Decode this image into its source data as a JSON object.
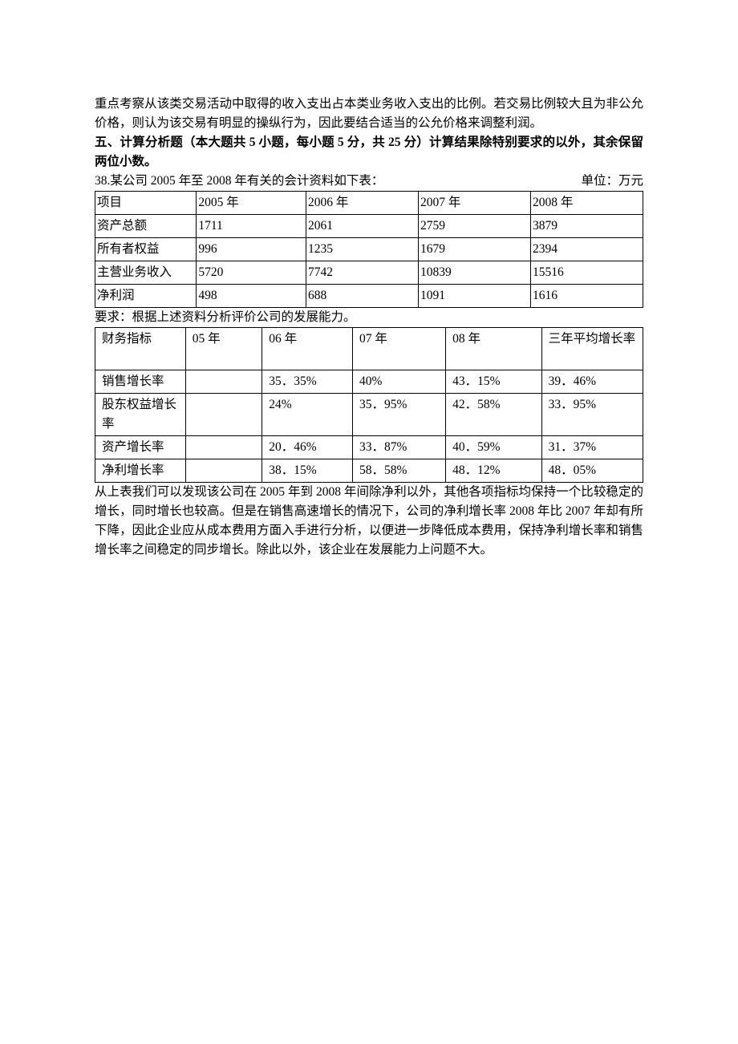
{
  "intro": {
    "p1": "重点考察从该类交易活动中取得的收入支出占本类业务收入支出的比例。若交易比例较大且为非公允价格，则认为该交易有明显的操纵行为，因此要结合适当的公允价格来调整利润。",
    "p2": "五、计算分析题（本大题共 5 小题，每小题 5 分，共 25 分）计算结果除特别要求的以外，其余保留两位小数。",
    "p3_left": "38.某公司 2005 年至 2008 年有关的会计资料如下表：",
    "p3_right": "单位：万元"
  },
  "table1": {
    "col_widths": [
      "18.5%",
      "20%",
      "20.5%",
      "20.5%",
      "20.5%"
    ],
    "rows": [
      [
        "项目",
        "2005 年",
        "2006 年",
        "2007 年",
        "2008 年"
      ],
      [
        "资产总额",
        "1711",
        "2061",
        "2759",
        "3879"
      ],
      [
        "所有者权益",
        "996",
        "1235",
        "1679",
        "2394"
      ],
      [
        "主营业务收入",
        "5720",
        "7742",
        "10839",
        "15516"
      ],
      [
        "净利润",
        "498",
        "688",
        "1091",
        "1616"
      ]
    ]
  },
  "mid": {
    "p1": "要求：根据上述资料分析评价公司的发展能力。"
  },
  "table2": {
    "col_widths": [
      "16.5%",
      "14%",
      "16.5%",
      "17%",
      "17.5%",
      "18.5%"
    ],
    "rows": [
      {
        "tall": true,
        "cells": [
          "财务指标",
          "05 年",
          "06 年",
          "07 年",
          "08 年",
          "三年平均增长率"
        ]
      },
      {
        "tall": false,
        "cells": [
          "销售增长率",
          "",
          "35．35%",
          "40%",
          "43．15%",
          "39．46%"
        ]
      },
      {
        "tall": true,
        "cells": [
          "股东权益增长率",
          "",
          "24%",
          "35．95%",
          "42．58%",
          "33．95%"
        ]
      },
      {
        "tall": false,
        "cells": [
          "资产增长率",
          "",
          "20．46%",
          "33．87%",
          "40．59%",
          "31．37%"
        ]
      },
      {
        "tall": false,
        "cells": [
          "净利增长率",
          "",
          "38．15%",
          "58．58%",
          "48．12%",
          "48．05%"
        ]
      }
    ]
  },
  "outro": {
    "p1": "从上表我们可以发现该公司在 2005 年到 2008 年间除净利以外，其他各项指标均保持一个比较稳定的增长，同时增长也较高。但是在销售高速增长的情况下，公司的净利增长率 2008 年比 2007 年却有所下降，因此企业应从成本费用方面入手进行分析，以便进一步降低成本费用，保持净利增长率和销售增长率之间稳定的同步增长。除此以外，该企业在发展能力上问题不大。"
  }
}
